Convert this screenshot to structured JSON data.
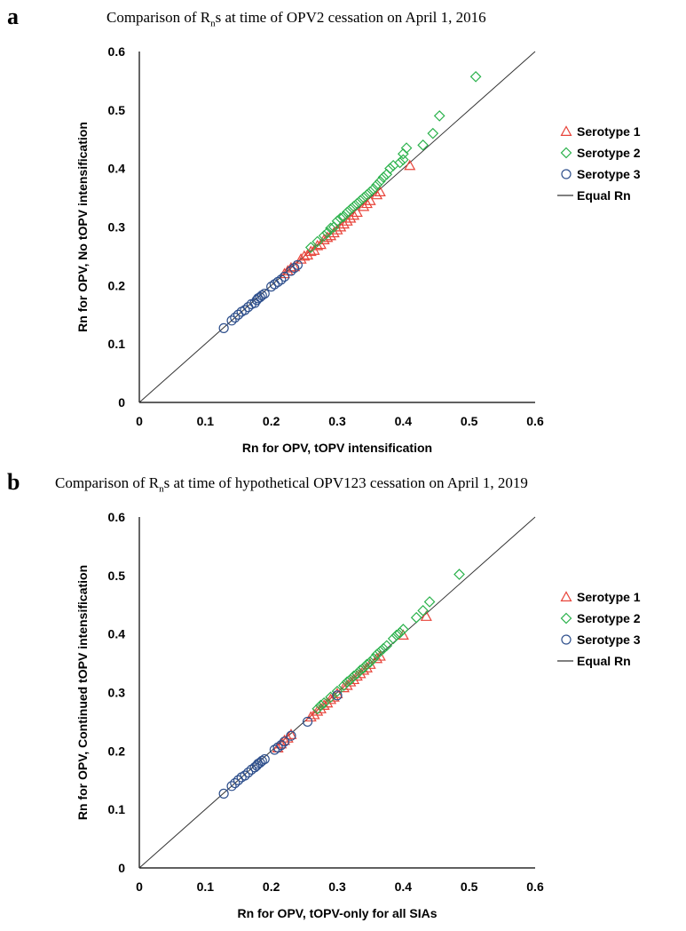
{
  "chart_data": [
    {
      "type": "scatter",
      "panel_letter": "a",
      "title_main": "Comparison of R",
      "title_sub": "n",
      "title_rest": "s at time of OPV2 cessation on April 1, 2016",
      "xlabel": "Rn for OPV, tOPV intensification",
      "ylabel": "Rn for OPV,  No tOPV intensification",
      "xlim": [
        0,
        0.6
      ],
      "ylim": [
        0,
        0.6
      ],
      "ticks": [
        "0",
        "0.1",
        "0.2",
        "0.3",
        "0.4",
        "0.5",
        "0.6"
      ],
      "grid": false,
      "legend_position": "right",
      "series": [
        {
          "name": "Serotype 1",
          "marker": "triangle",
          "color": "#e8443a",
          "points": [
            [
              0.22,
              0.22
            ],
            [
              0.225,
              0.225
            ],
            [
              0.23,
              0.23
            ],
            [
              0.235,
              0.232
            ],
            [
              0.245,
              0.245
            ],
            [
              0.25,
              0.25
            ],
            [
              0.255,
              0.252
            ],
            [
              0.26,
              0.258
            ],
            [
              0.265,
              0.26
            ],
            [
              0.27,
              0.268
            ],
            [
              0.275,
              0.27
            ],
            [
              0.28,
              0.278
            ],
            [
              0.285,
              0.282
            ],
            [
              0.29,
              0.285
            ],
            [
              0.295,
              0.29
            ],
            [
              0.3,
              0.295
            ],
            [
              0.305,
              0.3
            ],
            [
              0.31,
              0.305
            ],
            [
              0.315,
              0.31
            ],
            [
              0.32,
              0.315
            ],
            [
              0.325,
              0.32
            ],
            [
              0.33,
              0.325
            ],
            [
              0.34,
              0.335
            ],
            [
              0.345,
              0.34
            ],
            [
              0.35,
              0.345
            ],
            [
              0.36,
              0.355
            ],
            [
              0.365,
              0.36
            ],
            [
              0.41,
              0.405
            ]
          ]
        },
        {
          "name": "Serotype 2",
          "marker": "diamond",
          "color": "#2bb24c",
          "points": [
            [
              0.26,
              0.265
            ],
            [
              0.27,
              0.275
            ],
            [
              0.28,
              0.285
            ],
            [
              0.285,
              0.29
            ],
            [
              0.29,
              0.298
            ],
            [
              0.295,
              0.3
            ],
            [
              0.3,
              0.31
            ],
            [
              0.305,
              0.315
            ],
            [
              0.31,
              0.318
            ],
            [
              0.315,
              0.325
            ],
            [
              0.32,
              0.33
            ],
            [
              0.325,
              0.335
            ],
            [
              0.33,
              0.34
            ],
            [
              0.335,
              0.345
            ],
            [
              0.34,
              0.35
            ],
            [
              0.345,
              0.355
            ],
            [
              0.35,
              0.36
            ],
            [
              0.355,
              0.365
            ],
            [
              0.36,
              0.372
            ],
            [
              0.365,
              0.378
            ],
            [
              0.37,
              0.385
            ],
            [
              0.375,
              0.39
            ],
            [
              0.38,
              0.4
            ],
            [
              0.385,
              0.405
            ],
            [
              0.395,
              0.41
            ],
            [
              0.4,
              0.415
            ],
            [
              0.4,
              0.425
            ],
            [
              0.405,
              0.435
            ],
            [
              0.43,
              0.44
            ],
            [
              0.445,
              0.46
            ],
            [
              0.455,
              0.49
            ],
            [
              0.51,
              0.557
            ]
          ]
        },
        {
          "name": "Serotype 3",
          "marker": "circle",
          "color": "#2e4f8c",
          "points": [
            [
              0.128,
              0.127
            ],
            [
              0.14,
              0.14
            ],
            [
              0.145,
              0.145
            ],
            [
              0.15,
              0.15
            ],
            [
              0.155,
              0.155
            ],
            [
              0.16,
              0.158
            ],
            [
              0.165,
              0.163
            ],
            [
              0.17,
              0.168
            ],
            [
              0.175,
              0.17
            ],
            [
              0.178,
              0.175
            ],
            [
              0.18,
              0.178
            ],
            [
              0.183,
              0.18
            ],
            [
              0.186,
              0.183
            ],
            [
              0.19,
              0.186
            ],
            [
              0.2,
              0.198
            ],
            [
              0.205,
              0.202
            ],
            [
              0.21,
              0.206
            ],
            [
              0.215,
              0.21
            ],
            [
              0.22,
              0.215
            ],
            [
              0.23,
              0.225
            ],
            [
              0.235,
              0.23
            ],
            [
              0.24,
              0.235
            ]
          ]
        }
      ],
      "line_legend": "Equal Rn"
    },
    {
      "type": "scatter",
      "panel_letter": "b",
      "title_main": "Comparison of R",
      "title_sub": "n",
      "title_rest": "s at time of hypothetical OPV123 cessation on April 1, 2019",
      "xlabel": "Rn for OPV, tOPV-only for all SIAs",
      "ylabel": "Rn for OPV,  Continued tOPV intensification",
      "xlim": [
        0,
        0.6
      ],
      "ylim": [
        0,
        0.6
      ],
      "ticks": [
        "0",
        "0.1",
        "0.2",
        "0.3",
        "0.4",
        "0.5",
        "0.6"
      ],
      "grid": false,
      "legend_position": "right",
      "series": [
        {
          "name": "Serotype 1",
          "marker": "triangle",
          "color": "#e8443a",
          "points": [
            [
              0.21,
              0.205
            ],
            [
              0.215,
              0.212
            ],
            [
              0.22,
              0.218
            ],
            [
              0.225,
              0.222
            ],
            [
              0.23,
              0.228
            ],
            [
              0.26,
              0.258
            ],
            [
              0.265,
              0.262
            ],
            [
              0.27,
              0.268
            ],
            [
              0.275,
              0.272
            ],
            [
              0.28,
              0.278
            ],
            [
              0.285,
              0.282
            ],
            [
              0.29,
              0.288
            ],
            [
              0.295,
              0.292
            ],
            [
              0.3,
              0.298
            ],
            [
              0.31,
              0.308
            ],
            [
              0.315,
              0.312
            ],
            [
              0.32,
              0.318
            ],
            [
              0.325,
              0.322
            ],
            [
              0.33,
              0.328
            ],
            [
              0.335,
              0.332
            ],
            [
              0.34,
              0.338
            ],
            [
              0.345,
              0.342
            ],
            [
              0.35,
              0.348
            ],
            [
              0.36,
              0.358
            ],
            [
              0.365,
              0.362
            ],
            [
              0.4,
              0.398
            ],
            [
              0.435,
              0.43
            ]
          ]
        },
        {
          "name": "Serotype 2",
          "marker": "diamond",
          "color": "#2bb24c",
          "points": [
            [
              0.27,
              0.272
            ],
            [
              0.275,
              0.278
            ],
            [
              0.28,
              0.282
            ],
            [
              0.29,
              0.292
            ],
            [
              0.3,
              0.302
            ],
            [
              0.31,
              0.312
            ],
            [
              0.315,
              0.318
            ],
            [
              0.32,
              0.322
            ],
            [
              0.325,
              0.328
            ],
            [
              0.33,
              0.332
            ],
            [
              0.335,
              0.338
            ],
            [
              0.34,
              0.342
            ],
            [
              0.345,
              0.348
            ],
            [
              0.35,
              0.352
            ],
            [
              0.355,
              0.358
            ],
            [
              0.36,
              0.365
            ],
            [
              0.365,
              0.37
            ],
            [
              0.37,
              0.375
            ],
            [
              0.375,
              0.38
            ],
            [
              0.385,
              0.392
            ],
            [
              0.39,
              0.398
            ],
            [
              0.395,
              0.402
            ],
            [
              0.4,
              0.408
            ],
            [
              0.42,
              0.428
            ],
            [
              0.43,
              0.44
            ],
            [
              0.44,
              0.455
            ],
            [
              0.485,
              0.502
            ]
          ]
        },
        {
          "name": "Serotype 3",
          "marker": "circle",
          "color": "#2e4f8c",
          "points": [
            [
              0.128,
              0.127
            ],
            [
              0.14,
              0.14
            ],
            [
              0.145,
              0.145
            ],
            [
              0.15,
              0.15
            ],
            [
              0.155,
              0.155
            ],
            [
              0.16,
              0.158
            ],
            [
              0.165,
              0.163
            ],
            [
              0.17,
              0.168
            ],
            [
              0.175,
              0.172
            ],
            [
              0.178,
              0.175
            ],
            [
              0.18,
              0.178
            ],
            [
              0.183,
              0.18
            ],
            [
              0.186,
              0.183
            ],
            [
              0.19,
              0.186
            ],
            [
              0.205,
              0.202
            ],
            [
              0.21,
              0.206
            ],
            [
              0.215,
              0.21
            ],
            [
              0.22,
              0.216
            ],
            [
              0.23,
              0.226
            ],
            [
              0.255,
              0.25
            ],
            [
              0.3,
              0.295
            ]
          ]
        }
      ],
      "line_legend": "Equal Rn"
    }
  ]
}
